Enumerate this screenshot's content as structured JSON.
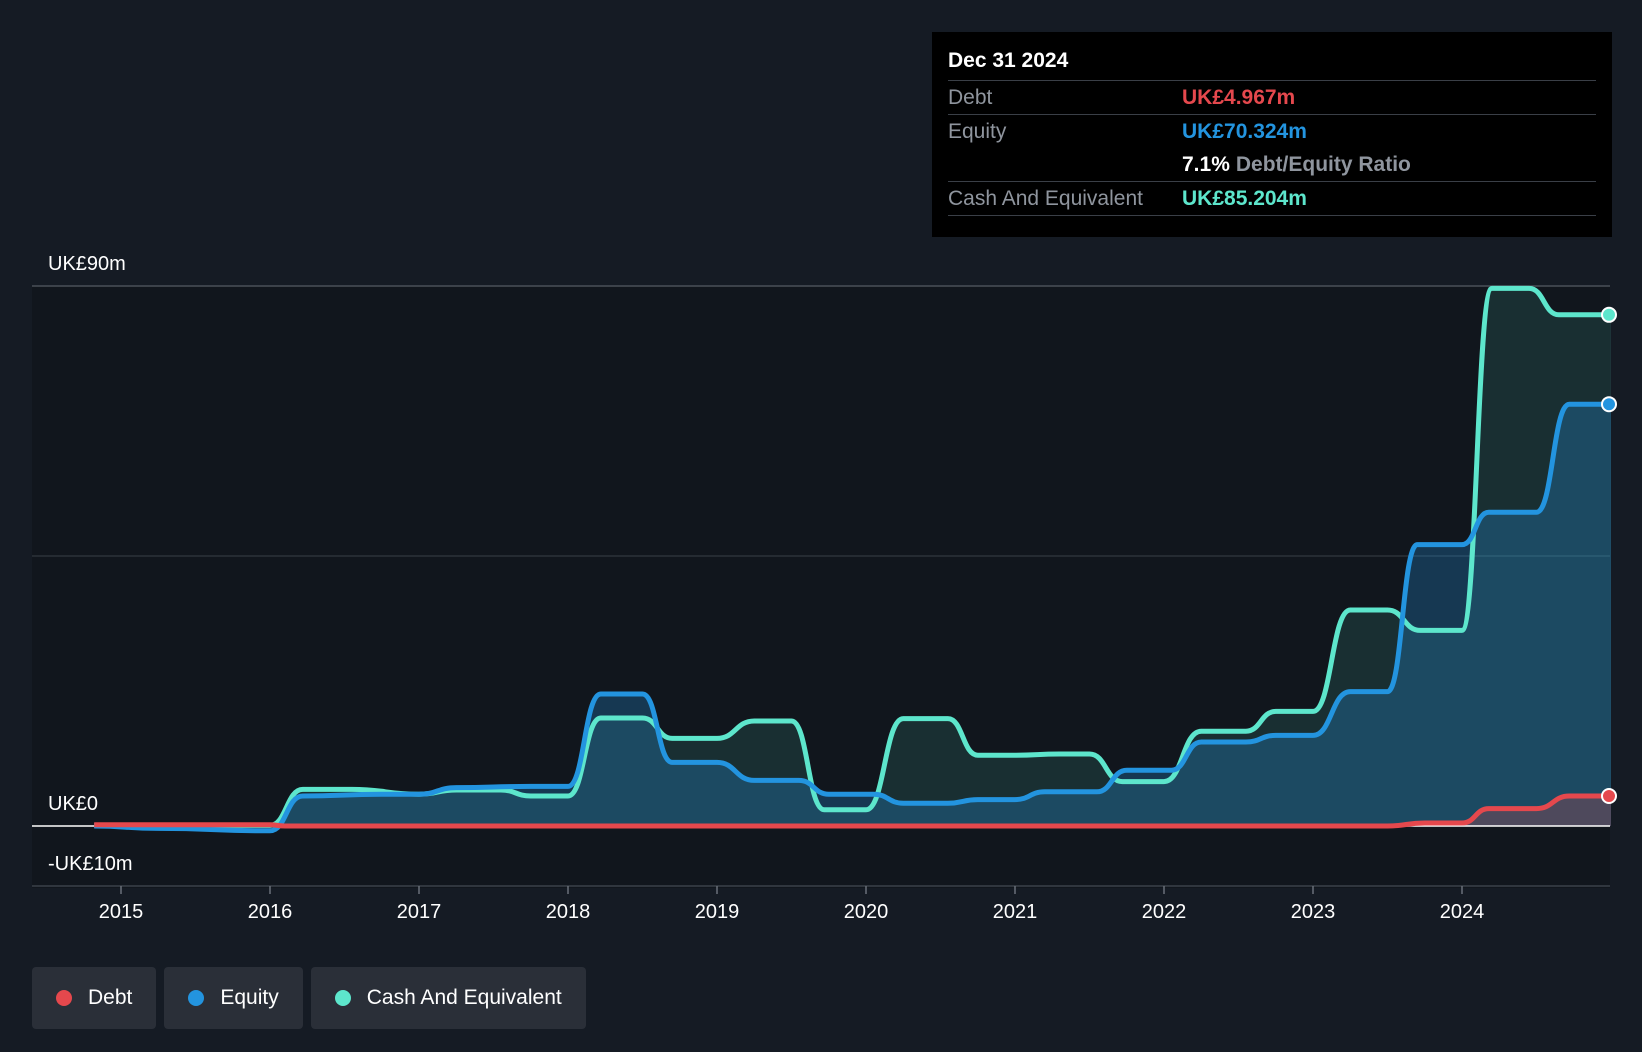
{
  "chart_data": {
    "type": "area",
    "y_axis_labels": {
      "top": "UK£90m",
      "zero": "UK£0",
      "bottom": "-UK£10m"
    },
    "ylim": [
      -10,
      90
    ],
    "x_ticks": [
      "2015",
      "2016",
      "2017",
      "2018",
      "2019",
      "2020",
      "2021",
      "2022",
      "2023",
      "2024"
    ],
    "xlim": [
      2014.6,
      2025.0
    ],
    "grid": true,
    "series": [
      {
        "name": "Debt",
        "color": "#e5484d",
        "points": [
          [
            2014.82,
            0.2
          ],
          [
            2016.0,
            0.2
          ],
          [
            2016.1,
            0.0
          ],
          [
            2023.5,
            0.0
          ],
          [
            2023.75,
            0.5
          ],
          [
            2024.0,
            0.5
          ],
          [
            2024.18,
            2.9
          ],
          [
            2024.5,
            2.9
          ],
          [
            2024.72,
            5.0
          ],
          [
            2025.0,
            5.0
          ]
        ]
      },
      {
        "name": "Equity",
        "color": "#2394df",
        "points": [
          [
            2014.82,
            0.0
          ],
          [
            2015.25,
            -0.4
          ],
          [
            2016.0,
            -0.8
          ],
          [
            2016.22,
            5.0
          ],
          [
            2016.75,
            5.3
          ],
          [
            2017.0,
            5.3
          ],
          [
            2017.25,
            6.4
          ],
          [
            2017.75,
            6.6
          ],
          [
            2018.0,
            6.6
          ],
          [
            2018.22,
            22.0
          ],
          [
            2018.5,
            22.0
          ],
          [
            2018.7,
            10.6
          ],
          [
            2019.0,
            10.6
          ],
          [
            2019.25,
            7.6
          ],
          [
            2019.55,
            7.6
          ],
          [
            2019.75,
            5.3
          ],
          [
            2020.05,
            5.3
          ],
          [
            2020.25,
            3.8
          ],
          [
            2020.55,
            3.8
          ],
          [
            2020.75,
            4.4
          ],
          [
            2021.0,
            4.4
          ],
          [
            2021.2,
            5.7
          ],
          [
            2021.55,
            5.7
          ],
          [
            2021.75,
            9.3
          ],
          [
            2022.05,
            9.3
          ],
          [
            2022.25,
            14.0
          ],
          [
            2022.55,
            14.0
          ],
          [
            2022.75,
            15.1
          ],
          [
            2023.0,
            15.1
          ],
          [
            2023.25,
            22.4
          ],
          [
            2023.5,
            22.4
          ],
          [
            2023.7,
            46.9
          ],
          [
            2024.0,
            46.9
          ],
          [
            2024.18,
            52.3
          ],
          [
            2024.5,
            52.3
          ],
          [
            2024.72,
            70.3
          ],
          [
            2025.0,
            70.3
          ]
        ]
      },
      {
        "name": "Cash And Equivalent",
        "color": "#5de6cc",
        "points": [
          [
            2014.82,
            0.1
          ],
          [
            2016.0,
            0.1
          ],
          [
            2016.22,
            6.1
          ],
          [
            2016.55,
            6.1
          ],
          [
            2017.0,
            5.3
          ],
          [
            2017.25,
            6.0
          ],
          [
            2017.55,
            6.0
          ],
          [
            2017.75,
            5.0
          ],
          [
            2018.0,
            5.0
          ],
          [
            2018.22,
            18.0
          ],
          [
            2018.5,
            18.0
          ],
          [
            2018.7,
            14.6
          ],
          [
            2019.0,
            14.6
          ],
          [
            2019.25,
            17.5
          ],
          [
            2019.5,
            17.5
          ],
          [
            2019.72,
            2.7
          ],
          [
            2020.0,
            2.7
          ],
          [
            2020.25,
            17.9
          ],
          [
            2020.55,
            17.9
          ],
          [
            2020.75,
            11.8
          ],
          [
            2021.0,
            11.8
          ],
          [
            2021.3,
            12.0
          ],
          [
            2021.5,
            12.0
          ],
          [
            2021.72,
            7.4
          ],
          [
            2022.0,
            7.4
          ],
          [
            2022.25,
            15.8
          ],
          [
            2022.55,
            15.8
          ],
          [
            2022.75,
            19.1
          ],
          [
            2023.0,
            19.1
          ],
          [
            2023.25,
            36.0
          ],
          [
            2023.5,
            36.0
          ],
          [
            2023.72,
            32.6
          ],
          [
            2024.0,
            32.6
          ],
          [
            2024.2,
            89.6
          ],
          [
            2024.45,
            89.6
          ],
          [
            2024.65,
            85.2
          ],
          [
            2025.0,
            85.2
          ]
        ]
      }
    ],
    "tooltip": {
      "date": "Dec 31 2024",
      "debt_label": "Debt",
      "debt_value": "UK£4.967m",
      "equity_label": "Equity",
      "equity_value": "UK£70.324m",
      "ratio_value": "7.1%",
      "ratio_label": "Debt/Equity Ratio",
      "cash_label": "Cash And Equivalent",
      "cash_value": "UK£85.204m"
    },
    "legend": [
      "Debt",
      "Equity",
      "Cash And Equivalent"
    ],
    "legend_placement": "bottom-left"
  }
}
